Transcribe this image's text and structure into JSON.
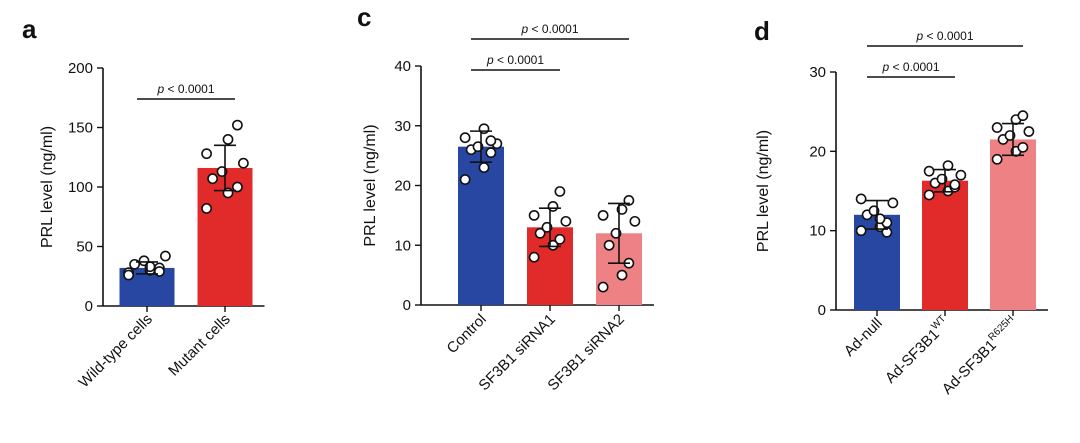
{
  "colors": {
    "blue": "#2747a3",
    "red": "#e12a2a",
    "pink": "#ee8183",
    "ink": "#111111"
  },
  "chart_data": [
    {
      "panel": "a",
      "type": "bar",
      "ylabel": "PRL level (ng/ml)",
      "ylim": [
        0,
        200
      ],
      "yticks": [
        0,
        50,
        100,
        150,
        200
      ],
      "categories": [
        {
          "label": "Wild-type cells",
          "sup": "",
          "color": "blue"
        },
        {
          "label": "Mutant cells",
          "sup": "",
          "color": "red"
        }
      ],
      "means": [
        32,
        116
      ],
      "sd": [
        5,
        19
      ],
      "points": [
        [
          28,
          30,
          32,
          35,
          38,
          42,
          26,
          33,
          29
        ],
        [
          82,
          95,
          100,
          107,
          113,
          120,
          128,
          140,
          152
        ]
      ],
      "comparisons": [
        {
          "from": 0,
          "to": 1,
          "text": "p < 0.0001",
          "level": 0
        }
      ]
    },
    {
      "panel": "c",
      "type": "bar",
      "ylabel": "PRL level (ng/ml)",
      "ylim": [
        0,
        40
      ],
      "yticks": [
        0,
        10,
        20,
        30,
        40
      ],
      "categories": [
        {
          "label": "Control",
          "sup": "",
          "color": "blue"
        },
        {
          "label": "SF3B1 siRNA1",
          "sup": "",
          "color": "red"
        },
        {
          "label": "SF3B1 siRNA2",
          "sup": "",
          "color": "pink"
        }
      ],
      "means": [
        26.5,
        13,
        12
      ],
      "sd": [
        2.6,
        3.2,
        5
      ],
      "points": [
        [
          21,
          23,
          25.5,
          26,
          26.5,
          27,
          28,
          29.5,
          27.5
        ],
        [
          8,
          10,
          11,
          12,
          13,
          14,
          15,
          16.5,
          19
        ],
        [
          3,
          5,
          7,
          10,
          12,
          14,
          15,
          16,
          17.5
        ]
      ],
      "comparisons": [
        {
          "from": 0,
          "to": 1,
          "text": "p < 0.0001",
          "level": 0
        },
        {
          "from": 0,
          "to": 2,
          "text": "p < 0.0001",
          "level": 1
        }
      ]
    },
    {
      "panel": "d",
      "type": "bar",
      "ylabel": "PRL level (ng/ml)",
      "ylim": [
        0,
        30
      ],
      "yticks": [
        0,
        10,
        20,
        30
      ],
      "categories": [
        {
          "label": "Ad-null",
          "sup": "",
          "color": "blue"
        },
        {
          "label": "Ad-SF3B1",
          "sup": "WT",
          "color": "red"
        },
        {
          "label": "Ad-SF3B1",
          "sup": "R625H",
          "color": "pink"
        }
      ],
      "means": [
        12,
        16.3,
        21.5
      ],
      "sd": [
        1.8,
        1.4,
        2
      ],
      "points": [
        [
          10,
          10.5,
          11,
          12,
          12.5,
          13.5,
          14,
          11.5,
          9.8
        ],
        [
          14.5,
          15,
          15.5,
          16,
          16.5,
          17,
          17.5,
          18.2,
          15.8
        ],
        [
          19,
          20,
          20.5,
          21.5,
          22,
          22.5,
          23,
          24,
          24.5
        ]
      ],
      "comparisons": [
        {
          "from": 0,
          "to": 1,
          "text": "p < 0.0001",
          "level": 0
        },
        {
          "from": 0,
          "to": 2,
          "text": "p < 0.0001",
          "level": 1
        }
      ]
    }
  ]
}
